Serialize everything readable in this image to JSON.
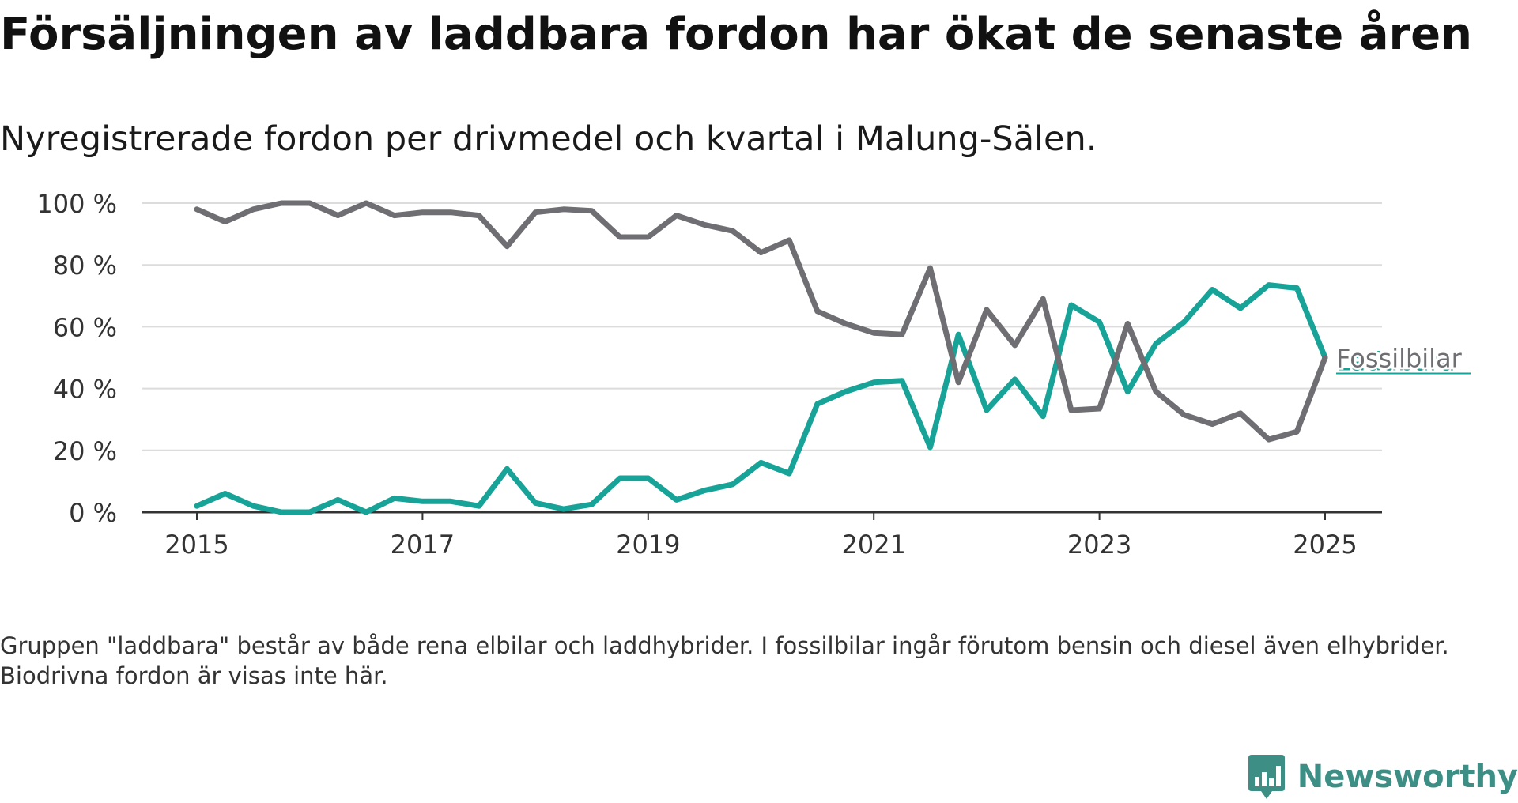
{
  "title": "Försäljningen av laddbara fordon har ökat de senaste åren",
  "subtitle": "Nyregistrerade fordon per drivmedel och kvartal i Malung-Sälen.",
  "footnote": "Gruppen \"laddbara\" består av både rena elbilar och laddhybrider. I fossilbilar ingår förutom bensin och diesel även elhybrider. Biodrivna fordon är visas inte här.",
  "brand": {
    "name": "Newsworthy",
    "color": "#3d8f86"
  },
  "chart_data": {
    "type": "line",
    "title": "",
    "xlabel": "",
    "ylabel": "",
    "x": [
      "2015-Q1",
      "2015-Q2",
      "2015-Q3",
      "2015-Q4",
      "2016-Q1",
      "2016-Q2",
      "2016-Q3",
      "2016-Q4",
      "2017-Q1",
      "2017-Q2",
      "2017-Q3",
      "2017-Q4",
      "2018-Q1",
      "2018-Q2",
      "2018-Q3",
      "2018-Q4",
      "2019-Q1",
      "2019-Q2",
      "2019-Q3",
      "2019-Q4",
      "2020-Q1",
      "2020-Q2",
      "2020-Q3",
      "2020-Q4",
      "2021-Q1",
      "2021-Q2",
      "2021-Q3",
      "2021-Q4",
      "2022-Q1",
      "2022-Q2",
      "2022-Q3",
      "2022-Q4",
      "2023-Q1",
      "2023-Q2",
      "2023-Q3",
      "2023-Q4",
      "2024-Q1",
      "2024-Q2",
      "2024-Q3",
      "2024-Q4",
      "2025-Q1"
    ],
    "x_ticks": [
      "2015",
      "2017",
      "2019",
      "2021",
      "2023",
      "2025"
    ],
    "y_ticks": [
      "0 %",
      "20 %",
      "40 %",
      "60 %",
      "80 %",
      "100 %"
    ],
    "ylim": [
      0,
      100
    ],
    "grid": true,
    "series": [
      {
        "name": "Fossilbilar",
        "color": "#6e6e73",
        "values": [
          98,
          94,
          98,
          100,
          100,
          96,
          100,
          96,
          97,
          97,
          96,
          86,
          97,
          98,
          97.5,
          89,
          89,
          96,
          93,
          91,
          84,
          88,
          65,
          61,
          58,
          57.5,
          79,
          42,
          65.5,
          54,
          69,
          33,
          33.5,
          61,
          39,
          31.5,
          28.5,
          32,
          23.5,
          26,
          50
        ]
      },
      {
        "name": "Laddbara",
        "color": "#17a398",
        "values": [
          2,
          6,
          2,
          0,
          0,
          4,
          0,
          4.5,
          3.5,
          3.5,
          2,
          14,
          3,
          1,
          2.5,
          11,
          11,
          4,
          7,
          9,
          16,
          12.5,
          35,
          39,
          42,
          42.5,
          21,
          57.5,
          33,
          43,
          31,
          67,
          61.5,
          39,
          54.5,
          61.5,
          72,
          66,
          73.5,
          72.5,
          50
        ]
      }
    ]
  }
}
